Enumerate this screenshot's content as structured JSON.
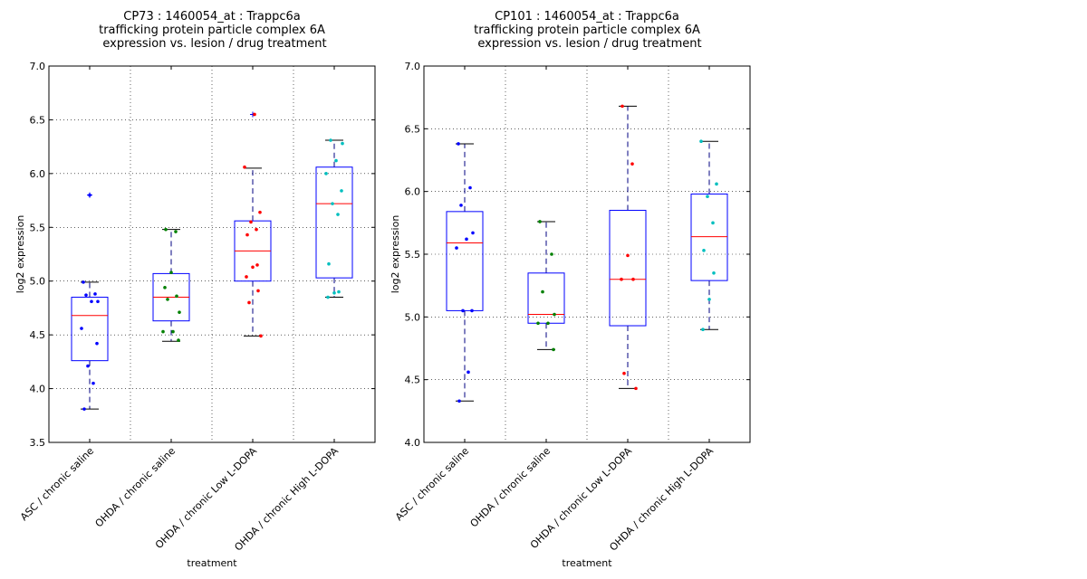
{
  "colors": {
    "box": "#0000ff",
    "median": "#ff0000",
    "whisker": "#000080",
    "flier": "#0000ff",
    "grid": "#000000",
    "series_points": [
      "#0000ff",
      "#008000",
      "#ff0000",
      "#00bfbf"
    ]
  },
  "chart_data": [
    {
      "type": "box",
      "title_lines": [
        "CP73 : 1460054_at : Trappc6a",
        "trafficking protein particle complex 6A",
        "expression vs. lesion / drug treatment"
      ],
      "xlabel": "treatment",
      "ylabel": "log2 expression",
      "ylim": [
        3.5,
        7.0
      ],
      "yticks": [
        "3.5",
        "4.0",
        "4.5",
        "5.0",
        "5.5",
        "6.0",
        "6.5",
        "7.0"
      ],
      "grid": true,
      "categories": [
        "ASC / chronic saline",
        "OHDA / chronic saline",
        "OHDA / chronic Low L-DOPA",
        "OHDA / chronic High L-DOPA"
      ],
      "boxes": [
        {
          "whislo": 3.81,
          "q1": 4.26,
          "med": 4.68,
          "q3": 4.85,
          "whishi": 4.99,
          "fliers": [
            5.8
          ]
        },
        {
          "whislo": 4.44,
          "q1": 4.63,
          "med": 4.85,
          "q3": 5.07,
          "whishi": 5.48,
          "fliers": []
        },
        {
          "whislo": 4.49,
          "q1": 5.0,
          "med": 5.28,
          "q3": 5.56,
          "whishi": 6.05,
          "fliers": [
            6.55
          ]
        },
        {
          "whislo": 4.85,
          "q1": 5.03,
          "med": 5.72,
          "q3": 6.06,
          "whishi": 6.31,
          "fliers": []
        }
      ],
      "points": [
        [
          3.81,
          4.05,
          4.21,
          4.42,
          4.56,
          4.81,
          4.81,
          4.87,
          4.88,
          4.99,
          5.8
        ],
        [
          4.45,
          4.53,
          4.53,
          4.71,
          4.83,
          4.86,
          4.94,
          5.08,
          5.46,
          5.48
        ],
        [
          4.49,
          4.8,
          4.91,
          5.04,
          5.13,
          5.15,
          5.43,
          5.48,
          5.55,
          5.64,
          6.06,
          6.55
        ],
        [
          4.85,
          4.89,
          4.9,
          5.16,
          5.62,
          5.72,
          5.84,
          6.0,
          6.12,
          6.28,
          6.31
        ]
      ]
    },
    {
      "type": "box",
      "title_lines": [
        "CP101 : 1460054_at : Trappc6a",
        "trafficking protein particle complex 6A",
        "expression vs. lesion / drug treatment"
      ],
      "xlabel": "treatment",
      "ylabel": "log2 expression",
      "ylim": [
        4.0,
        7.0
      ],
      "yticks": [
        "4.0",
        "4.5",
        "5.0",
        "5.5",
        "6.0",
        "6.5",
        "7.0"
      ],
      "grid": true,
      "categories": [
        "ASC / chronic saline",
        "OHDA / chronic saline",
        "OHDA / chronic Low L-DOPA",
        "OHDA / chronic High L-DOPA"
      ],
      "boxes": [
        {
          "whislo": 4.33,
          "q1": 5.05,
          "med": 5.59,
          "q3": 5.84,
          "whishi": 6.38,
          "fliers": []
        },
        {
          "whislo": 4.74,
          "q1": 4.95,
          "med": 5.02,
          "q3": 5.35,
          "whishi": 5.76,
          "fliers": []
        },
        {
          "whislo": 4.43,
          "q1": 4.93,
          "med": 5.3,
          "q3": 5.85,
          "whishi": 6.68,
          "fliers": []
        },
        {
          "whislo": 4.9,
          "q1": 5.29,
          "med": 5.64,
          "q3": 5.98,
          "whishi": 6.4,
          "fliers": []
        }
      ],
      "points": [
        [
          4.33,
          4.56,
          5.05,
          5.05,
          5.55,
          5.62,
          5.67,
          5.89,
          6.03,
          6.38
        ],
        [
          4.74,
          4.95,
          4.95,
          5.02,
          5.2,
          5.5,
          5.76
        ],
        [
          4.43,
          4.55,
          5.3,
          5.3,
          5.49,
          6.22,
          6.68
        ],
        [
          4.9,
          5.14,
          5.35,
          5.53,
          5.75,
          5.96,
          6.06,
          6.4
        ]
      ]
    }
  ]
}
